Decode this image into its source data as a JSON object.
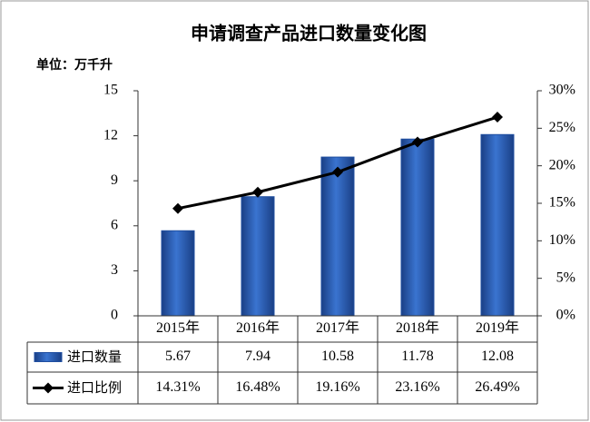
{
  "chart_data": {
    "type": "bar-line",
    "title": "申请调查产品进口数量变化图",
    "unit_label": "单位：万千升",
    "categories": [
      "2015年",
      "2016年",
      "2017年",
      "2018年",
      "2019年"
    ],
    "series": [
      {
        "name": "进口数量",
        "color": "#1f4ea0",
        "values": [
          5.67,
          7.94,
          10.58,
          11.78,
          12.08
        ]
      },
      {
        "name": "进口比例",
        "color": "#000000",
        "axis": "y2",
        "values": [
          14.31,
          16.48,
          19.16,
          23.16,
          26.49
        ],
        "value_labels": [
          "14.31%",
          "16.48%",
          "19.16%",
          "23.16%",
          "26.49%"
        ]
      }
    ],
    "ylim": [
      0,
      15
    ],
    "yticks": [
      0,
      3,
      6,
      9,
      12,
      15
    ],
    "y2lim": [
      0,
      30
    ],
    "y2ticks": [
      {
        "value": 0,
        "label": "0%"
      },
      {
        "value": 5,
        "label": "5%"
      },
      {
        "value": 10,
        "label": "10%"
      },
      {
        "value": 15,
        "label": "15%"
      },
      {
        "value": 20,
        "label": "20%"
      },
      {
        "value": 25,
        "label": "25%"
      },
      {
        "value": 30,
        "label": "30%"
      }
    ]
  }
}
